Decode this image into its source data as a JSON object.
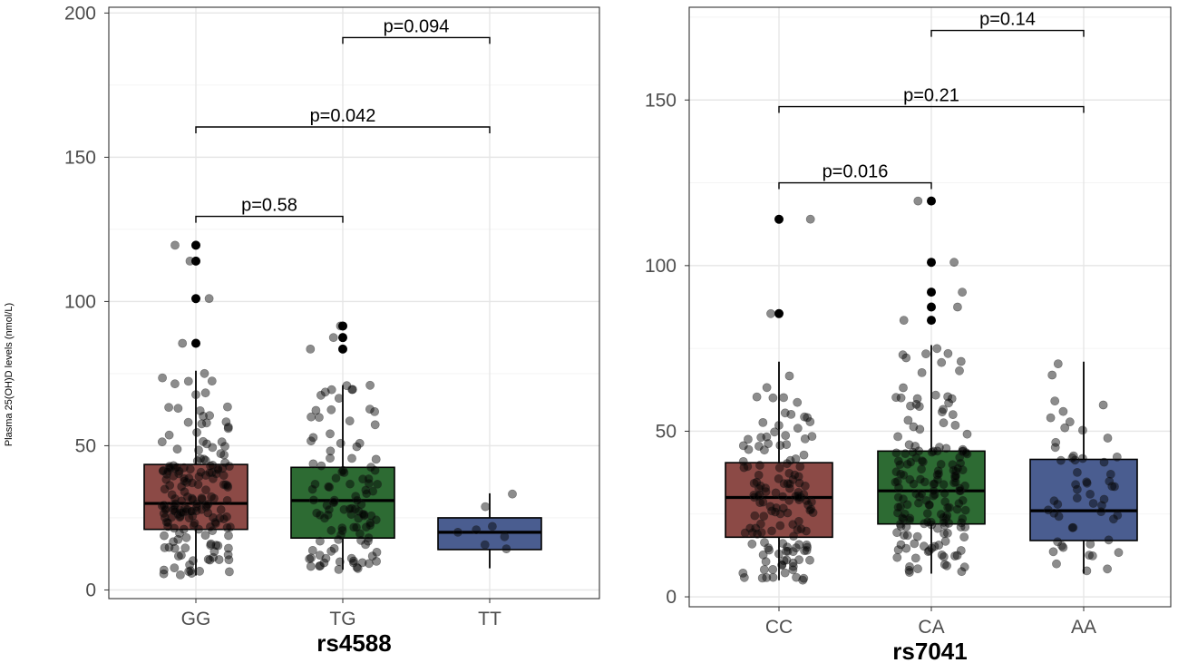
{
  "ylabel": "Plasma 25(OH)D levels (nmol/L)",
  "colors": {
    "red": "#8c4a46",
    "green": "#2d6b33",
    "blue": "#4a5d90"
  },
  "chart_data": [
    {
      "type": "boxplot",
      "xlabel": "rs4588",
      "categories": [
        "GG",
        "TG",
        "TT"
      ],
      "ylim": [
        -3,
        202
      ],
      "yticks": [
        0,
        50,
        100,
        150,
        200
      ],
      "boxes": [
        {
          "name": "GG",
          "color": "#8c4a46",
          "lower": 5,
          "q1": 21,
          "median": 30,
          "q3": 43.5,
          "upper": 76,
          "outliers": [
            85.5,
            101,
            114,
            119.5
          ],
          "n_jitter": 180
        },
        {
          "name": "TG",
          "color": "#2d6b33",
          "lower": 7,
          "q1": 18,
          "median": 31,
          "q3": 42.5,
          "upper": 71,
          "outliers": [
            83.5,
            87.5,
            91.5
          ],
          "n_jitter": 110
        },
        {
          "name": "TT",
          "color": "#4a5d90",
          "lower": 7.5,
          "q1": 14,
          "median": 20,
          "q3": 25,
          "upper": 33.5,
          "outliers": [],
          "n_jitter": 8
        }
      ],
      "comparisons": [
        {
          "from": 0,
          "to": 1,
          "y": 129.5,
          "label": "p=0.58"
        },
        {
          "from": 0,
          "to": 2,
          "y": 160.5,
          "label": "p=0.042"
        },
        {
          "from": 1,
          "to": 2,
          "y": 191.5,
          "label": "p=0.094"
        }
      ]
    },
    {
      "type": "boxplot",
      "xlabel": "rs7041",
      "categories": [
        "CC",
        "CA",
        "AA"
      ],
      "ylim": [
        -3,
        178
      ],
      "yticks": [
        0,
        50,
        100,
        150
      ],
      "boxes": [
        {
          "name": "CC",
          "color": "#8c4a46",
          "lower": 5,
          "q1": 18,
          "median": 30,
          "q3": 40.5,
          "upper": 71,
          "outliers": [
            85.5,
            114
          ],
          "n_jitter": 140
        },
        {
          "name": "CA",
          "color": "#2d6b33",
          "lower": 7,
          "q1": 22,
          "median": 32,
          "q3": 44,
          "upper": 76,
          "outliers": [
            83.5,
            87.5,
            92,
            101,
            119.5
          ],
          "n_jitter": 170
        },
        {
          "name": "AA",
          "color": "#4a5d90",
          "lower": 7,
          "q1": 17,
          "median": 26,
          "q3": 41.5,
          "upper": 71,
          "outliers": [],
          "n_jitter": 55
        }
      ],
      "comparisons": [
        {
          "from": 0,
          "to": 1,
          "y": 125,
          "label": "p=0.016"
        },
        {
          "from": 0,
          "to": 2,
          "y": 148,
          "label": "p=0.21"
        },
        {
          "from": 1,
          "to": 2,
          "y": 171,
          "label": "p=0.14"
        }
      ]
    }
  ]
}
